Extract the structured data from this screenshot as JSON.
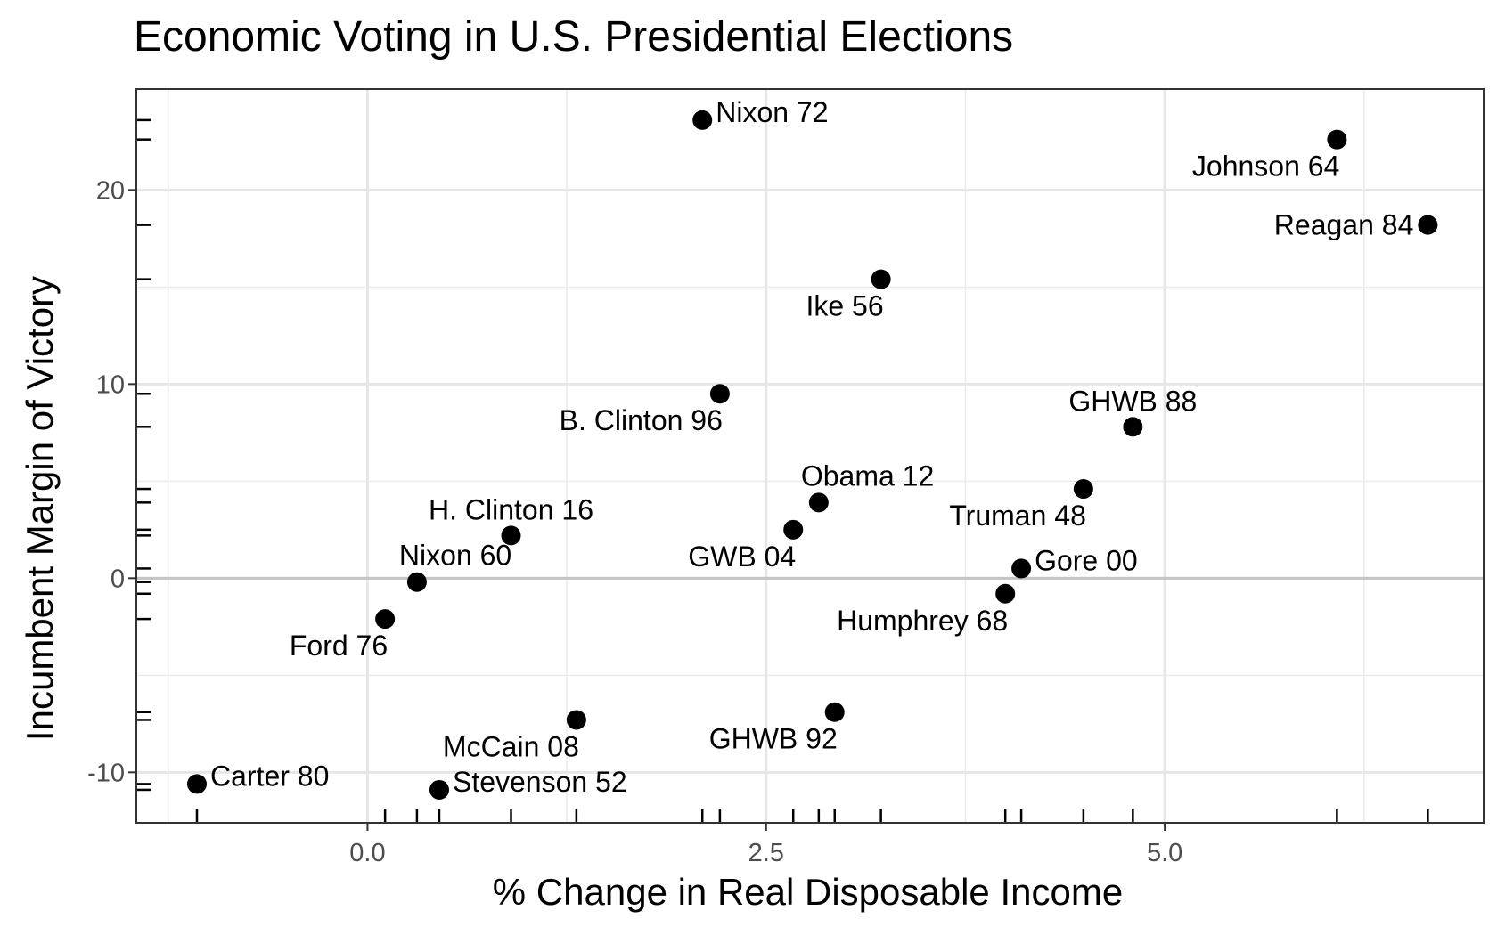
{
  "chart_data": {
    "type": "scatter",
    "title": "Economic Voting in U.S. Presidential Elections",
    "xlabel": "% Change in Real Disposable Income",
    "ylabel": "Incumbent Margin of Victory",
    "xlim": [
      -1.45,
      7.0
    ],
    "ylim": [
      -12.6,
      25.2
    ],
    "xticks": [
      0.0,
      2.5,
      5.0
    ],
    "xtick_labels": [
      "0.0",
      "2.5",
      "5.0"
    ],
    "yticks": [
      -10,
      0,
      10,
      20
    ],
    "ytick_labels": [
      "-10",
      "0",
      "10",
      "20"
    ],
    "x_minor_gridlines": [
      -1.25,
      1.25,
      3.75,
      6.25
    ],
    "y_minor_gridlines": [
      -5,
      5,
      15
    ],
    "reference_line_y": 0,
    "grid": true,
    "rug": true,
    "points": [
      {
        "label": "Nixon 72",
        "x": 2.1,
        "y": 23.6,
        "label_pos": "right"
      },
      {
        "label": "Johnson 64",
        "x": 6.08,
        "y": 22.6,
        "label_pos": "below-left"
      },
      {
        "label": "Reagan 84",
        "x": 6.65,
        "y": 18.2,
        "label_pos": "left"
      },
      {
        "label": "Ike 56",
        "x": 3.22,
        "y": 15.4,
        "label_pos": "below-left"
      },
      {
        "label": "B. Clinton 96",
        "x": 2.21,
        "y": 9.5,
        "label_pos": "below-left"
      },
      {
        "label": "GHWB 88",
        "x": 4.8,
        "y": 7.8,
        "label_pos": "above"
      },
      {
        "label": "Truman 48",
        "x": 4.49,
        "y": 4.6,
        "label_pos": "below-left"
      },
      {
        "label": "Obama 12",
        "x": 2.83,
        "y": 3.9,
        "label_pos": "above-right"
      },
      {
        "label": "GWB 04",
        "x": 2.67,
        "y": 2.5,
        "label_pos": "below-left"
      },
      {
        "label": "H. Clinton 16",
        "x": 0.9,
        "y": 2.2,
        "label_pos": "above"
      },
      {
        "label": "Gore 00",
        "x": 4.1,
        "y": 0.5,
        "label_pos": "right"
      },
      {
        "label": "Nixon 60",
        "x": 0.31,
        "y": -0.2,
        "label_pos": "above-right"
      },
      {
        "label": "Humphrey 68",
        "x": 4.0,
        "y": -0.8,
        "label_pos": "below-left"
      },
      {
        "label": "Ford 76",
        "x": 0.11,
        "y": -2.1,
        "label_pos": "below-left"
      },
      {
        "label": "McCain 08",
        "x": 1.31,
        "y": -7.3,
        "label_pos": "below-left"
      },
      {
        "label": "GHWB 92",
        "x": 2.93,
        "y": -6.9,
        "label_pos": "below-left"
      },
      {
        "label": "Carter 80",
        "x": -1.07,
        "y": -10.6,
        "label_pos": "right"
      },
      {
        "label": "Stevenson 52",
        "x": 0.45,
        "y": -10.9,
        "label_pos": "right"
      }
    ]
  }
}
